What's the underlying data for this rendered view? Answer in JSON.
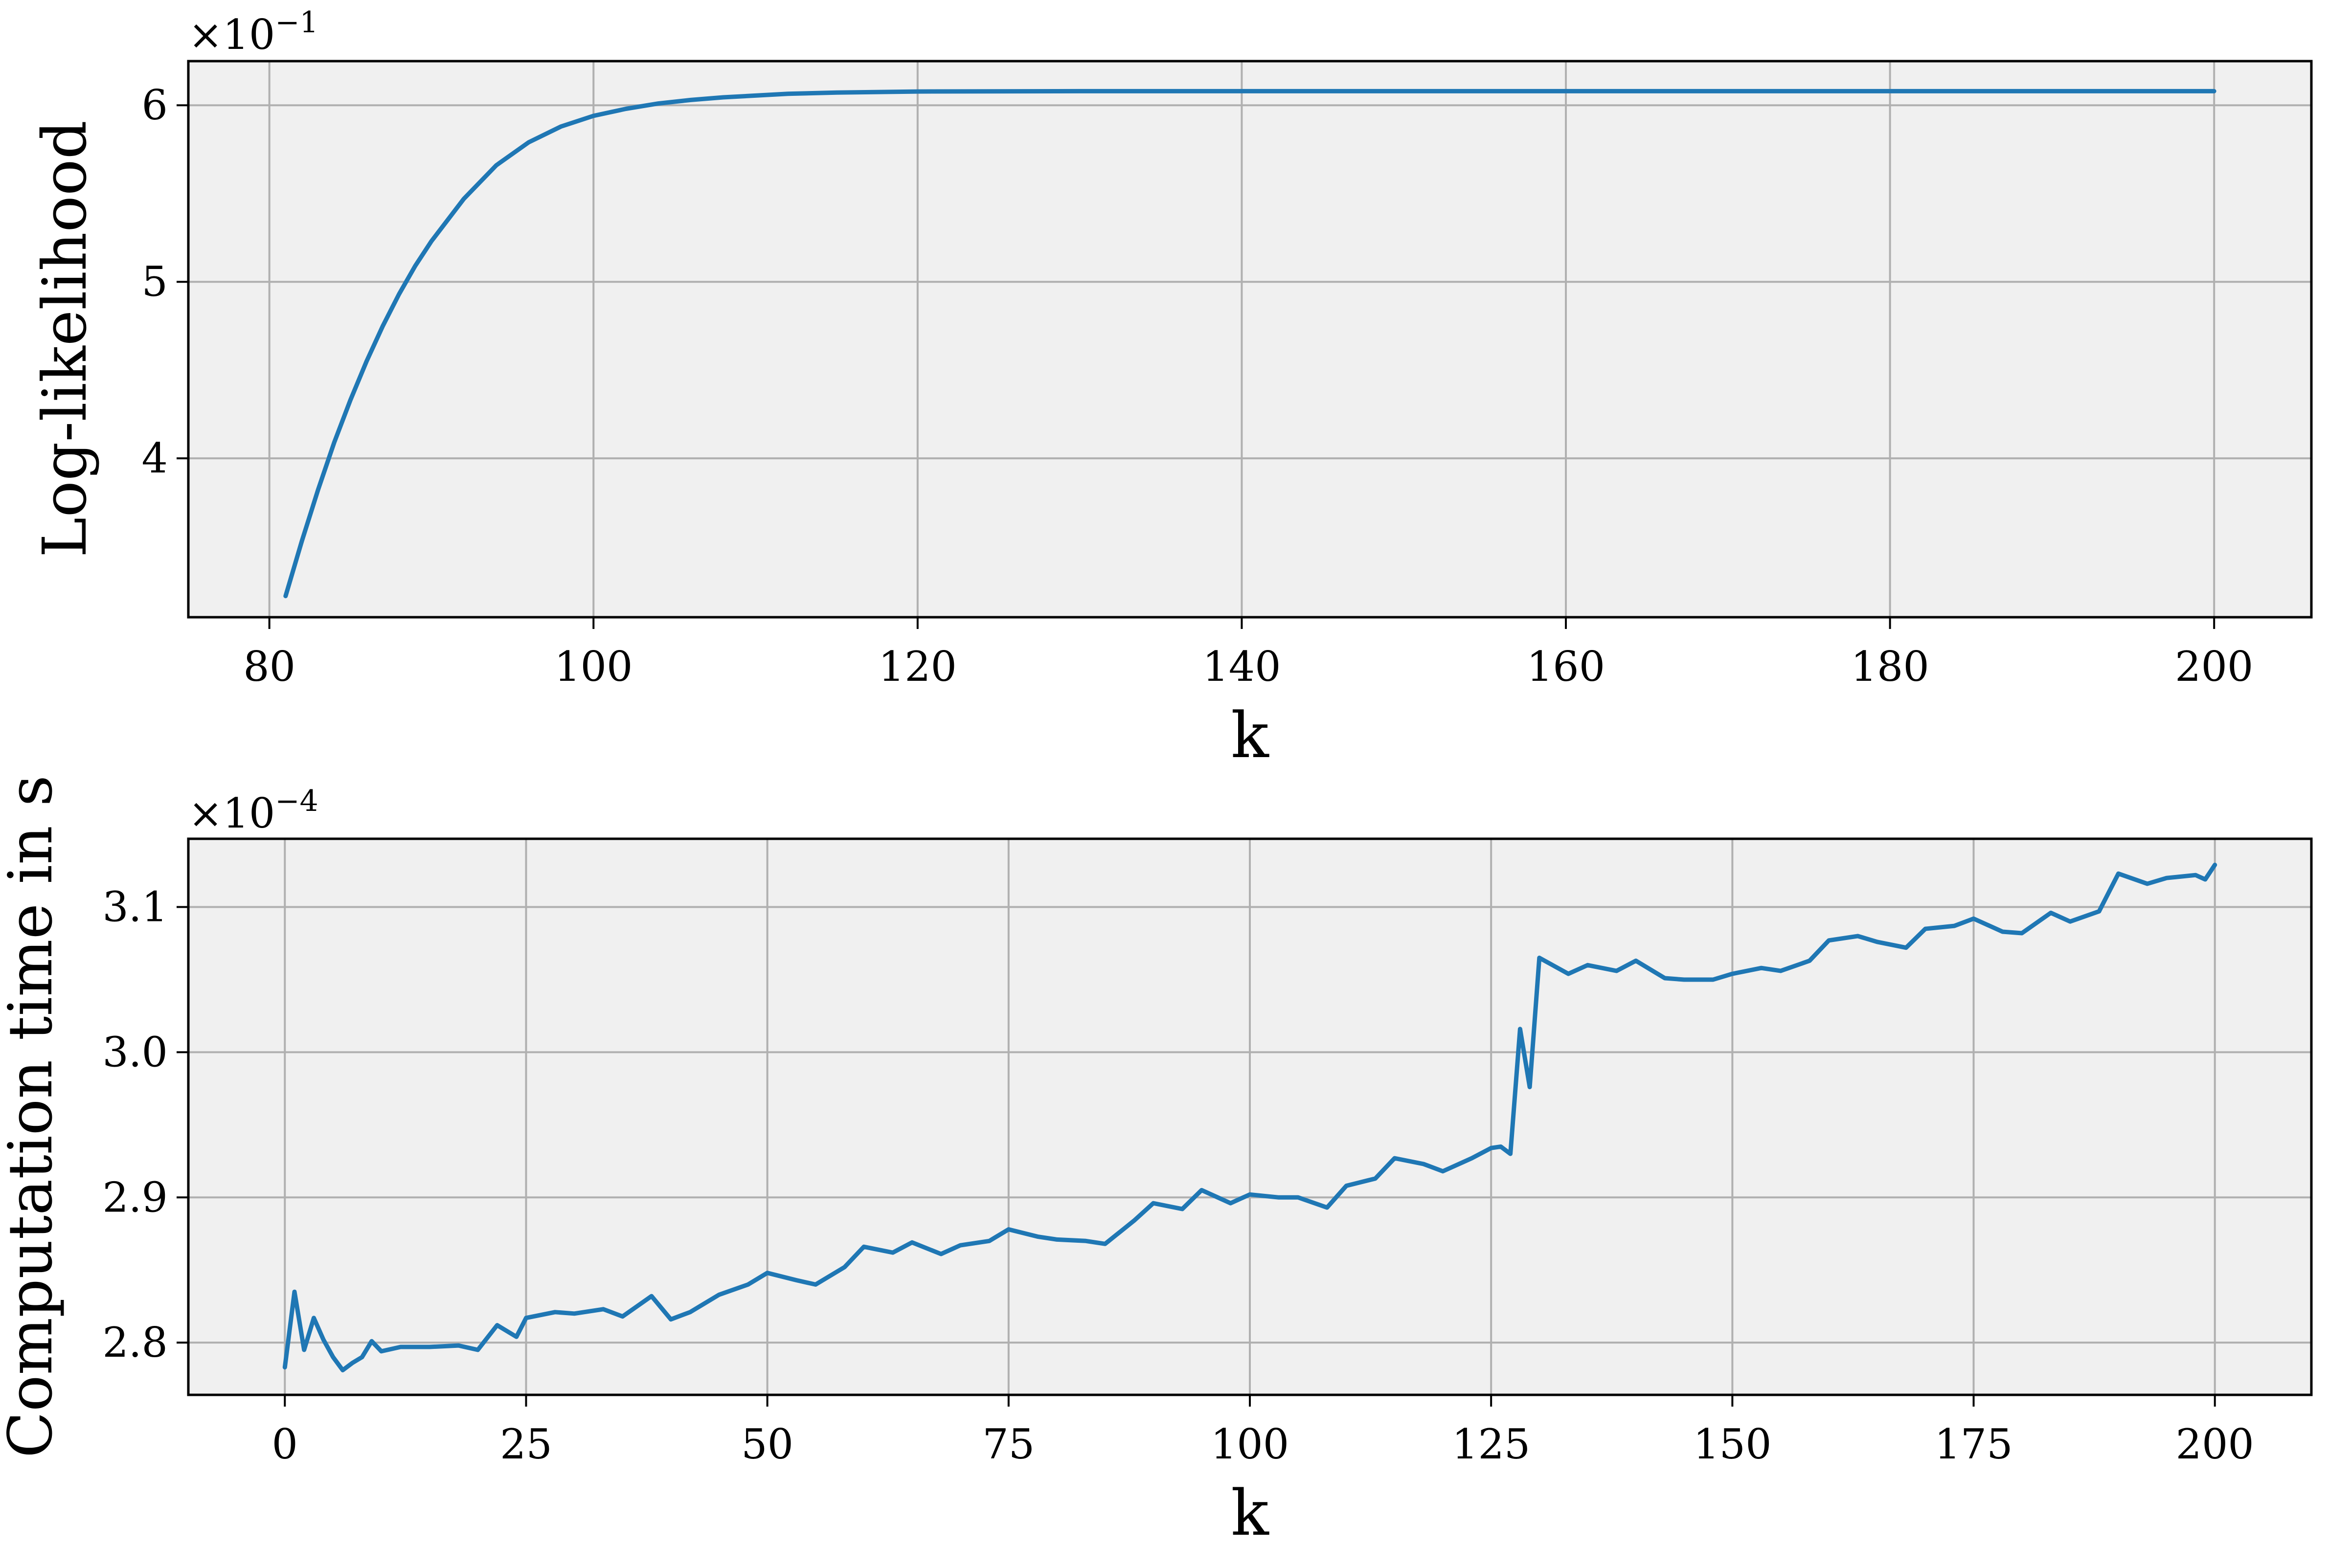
{
  "colors": {
    "line": "#1f77b4",
    "axes_bg": "#f0f0f0",
    "grid": "#b0b0b0"
  },
  "chart_data": [
    {
      "type": "line",
      "xlabel": "k",
      "ylabel": "Log-likelihood",
      "multiplier": "×10",
      "multiplier_exp": "−1",
      "xlim": [
        75,
        206
      ],
      "ylim": [
        3.1,
        6.25
      ],
      "xticks": [
        80,
        100,
        120,
        140,
        160,
        180,
        200
      ],
      "yticks": [
        4,
        5,
        6
      ],
      "grid": true,
      "series": [
        {
          "x": [
            81,
            82,
            83,
            84,
            85,
            86,
            87,
            88,
            89,
            90,
            92,
            94,
            96,
            98,
            100,
            102,
            104,
            106,
            108,
            110,
            112,
            115,
            120,
            130,
            150,
            170,
            190,
            200
          ],
          "values": [
            3.22,
            3.53,
            3.82,
            4.09,
            4.33,
            4.55,
            4.75,
            4.93,
            5.09,
            5.23,
            5.47,
            5.66,
            5.79,
            5.88,
            5.94,
            5.98,
            6.01,
            6.03,
            6.045,
            6.055,
            6.065,
            6.072,
            6.078,
            6.08,
            6.08,
            6.08,
            6.08,
            6.08
          ]
        }
      ]
    },
    {
      "type": "line",
      "xlabel": "k",
      "ylabel": "Computation time in s",
      "multiplier": "×10",
      "multiplier_exp": "−4",
      "xlim": [
        -10,
        210
      ],
      "ylim": [
        2.764,
        3.147
      ],
      "xticks": [
        0,
        25,
        50,
        75,
        100,
        125,
        150,
        175,
        200
      ],
      "yticks": [
        2.8,
        2.9,
        3.0,
        3.1
      ],
      "grid": true,
      "series": [
        {
          "x": [
            0,
            1,
            2,
            3,
            4,
            5,
            6,
            7,
            8,
            9,
            10,
            12,
            15,
            18,
            20,
            22,
            24,
            25,
            28,
            30,
            33,
            35,
            38,
            40,
            42,
            45,
            48,
            50,
            53,
            55,
            58,
            60,
            63,
            65,
            68,
            70,
            73,
            75,
            78,
            80,
            83,
            85,
            88,
            90,
            93,
            95,
            98,
            100,
            103,
            105,
            108,
            110,
            113,
            115,
            118,
            120,
            123,
            125,
            126,
            127,
            128,
            129,
            130,
            133,
            135,
            138,
            140,
            143,
            145,
            148,
            150,
            153,
            155,
            158,
            160,
            163,
            165,
            168,
            170,
            173,
            175,
            178,
            180,
            183,
            185,
            188,
            190,
            193,
            195,
            198,
            199,
            200
          ],
          "values": [
            2.783,
            2.835,
            2.795,
            2.817,
            2.802,
            2.79,
            2.781,
            2.786,
            2.79,
            2.801,
            2.794,
            2.797,
            2.797,
            2.798,
            2.795,
            2.812,
            2.804,
            2.817,
            2.821,
            2.82,
            2.823,
            2.818,
            2.832,
            2.816,
            2.821,
            2.833,
            2.84,
            2.848,
            2.843,
            2.84,
            2.852,
            2.866,
            2.862,
            2.869,
            2.861,
            2.867,
            2.87,
            2.878,
            2.873,
            2.871,
            2.87,
            2.868,
            2.884,
            2.896,
            2.892,
            2.905,
            2.896,
            2.902,
            2.9,
            2.9,
            2.893,
            2.908,
            2.913,
            2.927,
            2.923,
            2.918,
            2.927,
            2.934,
            2.935,
            2.93,
            3.016,
            2.976,
            3.065,
            3.054,
            3.06,
            3.056,
            3.063,
            3.051,
            3.05,
            3.05,
            3.054,
            3.058,
            3.056,
            3.063,
            3.077,
            3.08,
            3.076,
            3.072,
            3.085,
            3.087,
            3.092,
            3.083,
            3.082,
            3.096,
            3.09,
            3.097,
            3.123,
            3.116,
            3.12,
            3.122,
            3.119,
            3.129
          ]
        }
      ]
    }
  ]
}
